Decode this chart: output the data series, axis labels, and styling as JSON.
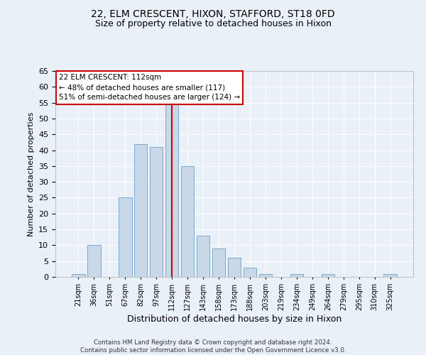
{
  "title_line1": "22, ELM CRESCENT, HIXON, STAFFORD, ST18 0FD",
  "title_line2": "Size of property relative to detached houses in Hixon",
  "xlabel": "Distribution of detached houses by size in Hixon",
  "ylabel": "Number of detached properties",
  "footer": "Contains HM Land Registry data © Crown copyright and database right 2024.\nContains public sector information licensed under the Open Government Licence v3.0.",
  "categories": [
    "21sqm",
    "36sqm",
    "51sqm",
    "67sqm",
    "82sqm",
    "97sqm",
    "112sqm",
    "127sqm",
    "143sqm",
    "158sqm",
    "173sqm",
    "188sqm",
    "203sqm",
    "219sqm",
    "234sqm",
    "249sqm",
    "264sqm",
    "279sqm",
    "295sqm",
    "310sqm",
    "325sqm"
  ],
  "values": [
    1,
    10,
    0,
    25,
    42,
    41,
    55,
    35,
    13,
    9,
    6,
    3,
    1,
    0,
    1,
    0,
    1,
    0,
    0,
    0,
    1
  ],
  "bar_color": "#c8d8e8",
  "bar_edge_color": "#7aaacc",
  "highlight_index": 6,
  "highlight_color": "#cc0000",
  "ylim": [
    0,
    65
  ],
  "yticks": [
    0,
    5,
    10,
    15,
    20,
    25,
    30,
    35,
    40,
    45,
    50,
    55,
    60,
    65
  ],
  "annotation_title": "22 ELM CRESCENT: 112sqm",
  "annotation_line1": "← 48% of detached houses are smaller (117)",
  "annotation_line2": "51% of semi-detached houses are larger (124) →",
  "background_color": "#eaf0f8",
  "plot_background": "#eaf0f8",
  "grid_color": "#ffffff"
}
